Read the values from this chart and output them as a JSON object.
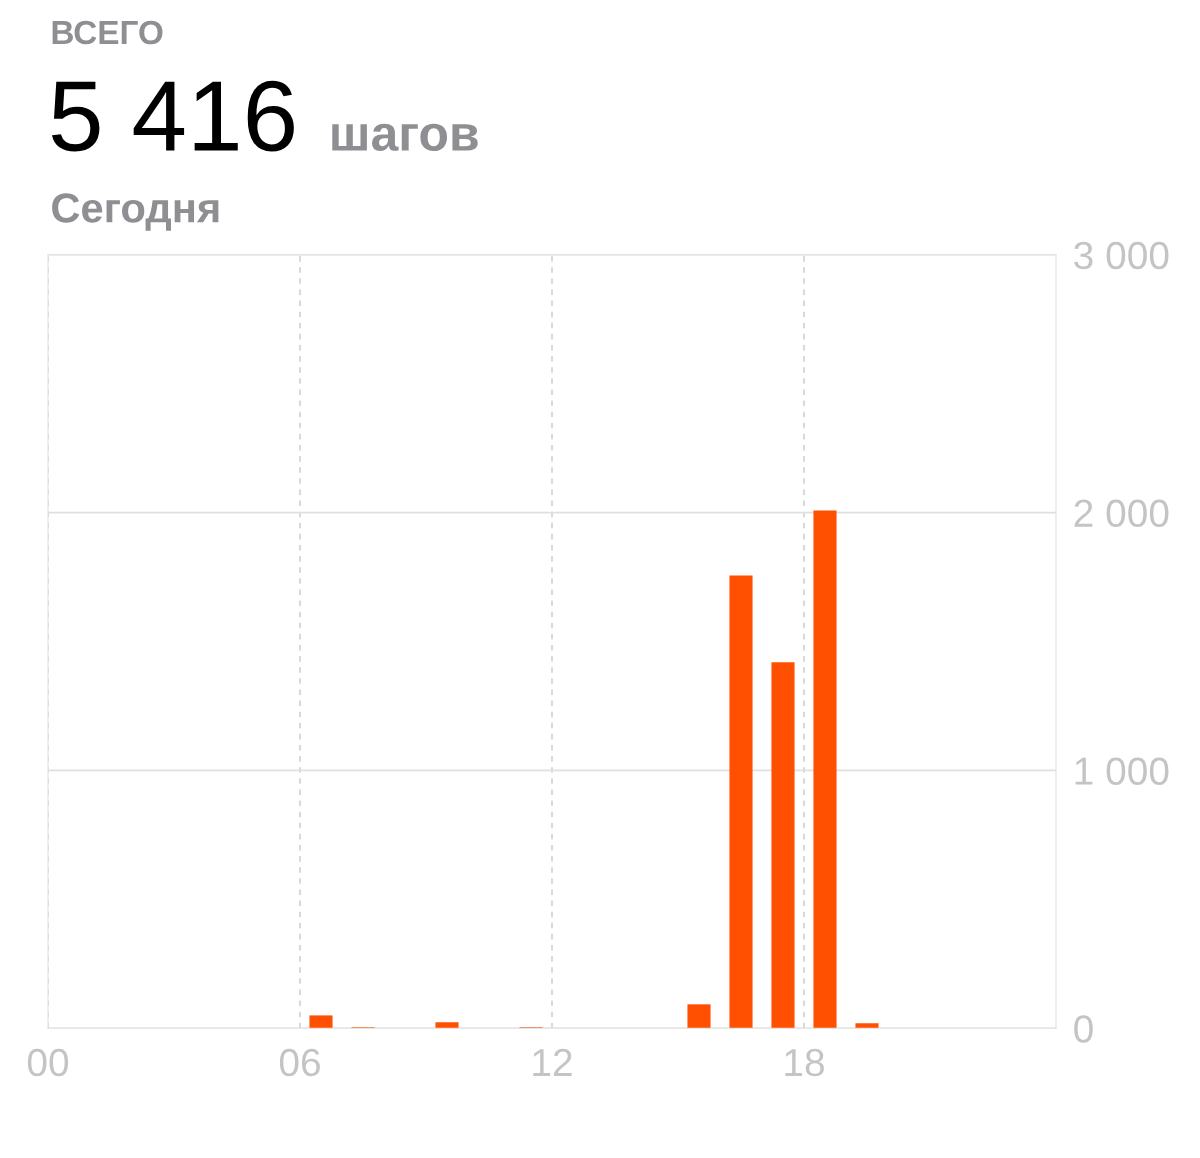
{
  "chart_data": {
    "type": "bar",
    "title": "ВСЕГО",
    "subtitle": "Сегодня",
    "annotations": [
      "5 416",
      "шагов"
    ],
    "x": [
      6.5,
      7.5,
      9.5,
      11.5,
      15.5,
      16.5,
      17.5,
      18.5,
      19.5
    ],
    "values": [
      50,
      4,
      23,
      4,
      93,
      1756,
      1420,
      2008,
      20
    ],
    "color": "#ff4f00",
    "xlim": [
      0,
      24
    ],
    "xticks": [
      {
        "value": 0,
        "label": "00"
      },
      {
        "value": 6,
        "label": "06"
      },
      {
        "value": 12,
        "label": "12"
      },
      {
        "value": 18,
        "label": "18"
      }
    ],
    "ylim": [
      0,
      3000
    ],
    "yticks": [
      {
        "value": 0,
        "label": "0"
      },
      {
        "value": 1000,
        "label": "1 000"
      },
      {
        "value": 2000,
        "label": "2 000"
      },
      {
        "value": 3000,
        "label": "3 000"
      }
    ],
    "grid": true
  }
}
